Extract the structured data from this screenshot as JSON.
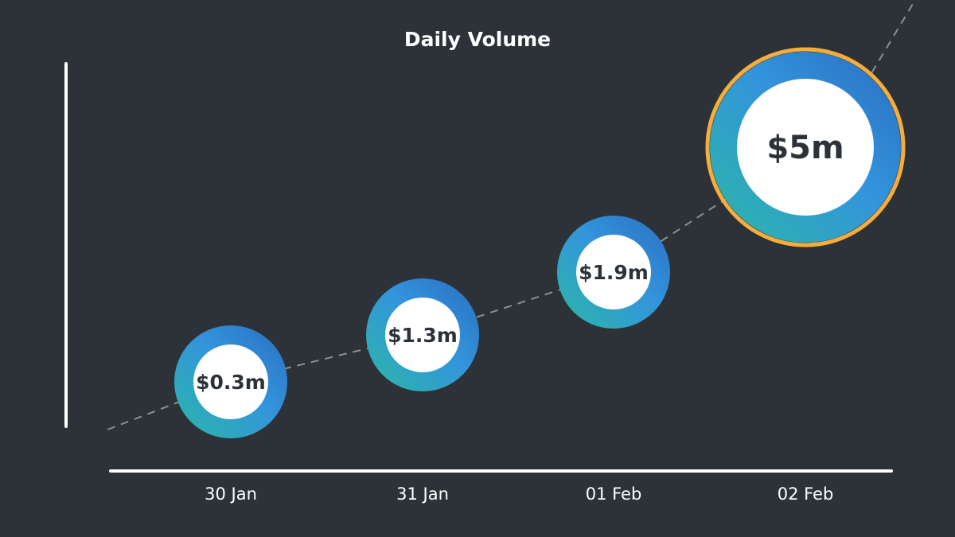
{
  "chart_data": {
    "type": "scatter",
    "title": "Daily Volume",
    "xlabel": "",
    "ylabel": "",
    "categories": [
      "30 Jan",
      "31 Jan",
      "01 Feb",
      "02 Feb"
    ],
    "values": [
      0.3,
      1.3,
      1.9,
      5
    ],
    "unit": "$m",
    "data_labels": [
      "$0.3m",
      "$1.3m",
      "$1.9m",
      "$5m"
    ],
    "highlighted": "02 Feb",
    "trend_line": "dashed",
    "grid": false
  },
  "colors": {
    "background": "#2d3238",
    "axis": "#ffffff",
    "ring_start": "#2bb8a6",
    "ring_end": "#3590e2",
    "ring_dark": "#2a6ec0",
    "highlight_border": "#f5ad3c",
    "trend": "#8a9097"
  }
}
